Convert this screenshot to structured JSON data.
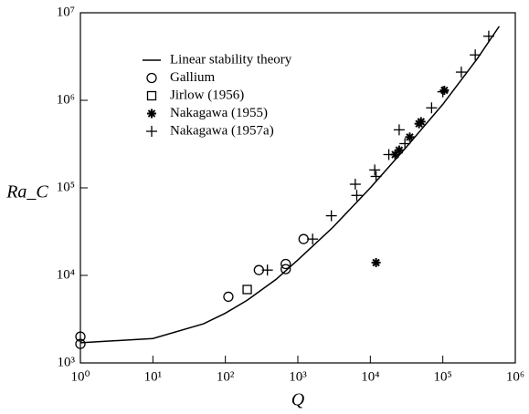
{
  "chart_data": {
    "type": "scatter",
    "x_label": "Q",
    "y_label": "Ra_C",
    "log_x": true,
    "log_y": true,
    "xlim": [
      1,
      1000000
    ],
    "ylim": [
      1000,
      10000000
    ],
    "xticks": [
      {
        "value": 1,
        "label": "10⁰"
      },
      {
        "value": 10,
        "label": "10¹"
      },
      {
        "value": 100,
        "label": "10²"
      },
      {
        "value": 1000,
        "label": "10³"
      },
      {
        "value": 10000,
        "label": "10⁴"
      },
      {
        "value": 100000,
        "label": "10⁵"
      },
      {
        "value": 1000000,
        "label": "10⁶"
      }
    ],
    "yticks": [
      {
        "value": 1000,
        "label": "10³"
      },
      {
        "value": 10000,
        "label": "10⁴"
      },
      {
        "value": 100000,
        "label": "10⁵"
      },
      {
        "value": 1000000,
        "label": "10⁶"
      },
      {
        "value": 10000000,
        "label": "10⁷"
      }
    ],
    "legend": "upper left",
    "series": [
      {
        "name": "Linear stability theory",
        "marker": "line",
        "color": "#000000",
        "x": [
          1,
          10,
          50,
          100,
          200,
          500,
          1000,
          3000,
          10000,
          30000,
          100000,
          300000,
          600000
        ],
        "values": [
          1700,
          1900,
          2800,
          3700,
          5200,
          9000,
          15000,
          35000,
          100000,
          280000,
          900000,
          3000000,
          7000000
        ]
      },
      {
        "name": "Gallium",
        "marker": "circle",
        "color": "#000000",
        "x": [
          1,
          1,
          110,
          290,
          680,
          680,
          1200
        ],
        "values": [
          2000,
          1650,
          5700,
          11500,
          13500,
          11800,
          26000
        ]
      },
      {
        "name": "Jirlow (1956)",
        "marker": "square",
        "color": "#000000",
        "x": [
          200
        ],
        "values": [
          6900
        ]
      },
      {
        "name": "Nakagawa (1955)",
        "marker": "asterisk",
        "color": "#000000",
        "x": [
          12000,
          22000,
          25000,
          35000,
          47000,
          50000,
          105000
        ],
        "values": [
          14000,
          240000,
          270000,
          380000,
          540000,
          570000,
          1300000
        ]
      },
      {
        "name": "Nakagawa (1957a)",
        "marker": "plus",
        "color": "#000000",
        "x": [
          380,
          1600,
          2900,
          6200,
          6500,
          11500,
          12000,
          18000,
          25000,
          30000,
          70000,
          100000,
          180000,
          280000,
          430000
        ],
        "values": [
          11500,
          26000,
          48000,
          110000,
          82000,
          160000,
          135000,
          240000,
          460000,
          320000,
          820000,
          1250000,
          2100000,
          3300000,
          5400000
        ]
      }
    ]
  }
}
